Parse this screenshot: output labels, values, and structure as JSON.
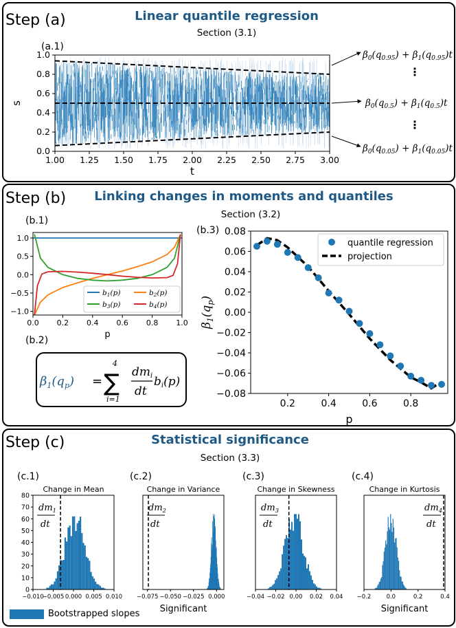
{
  "step_a": {
    "step_label": "Step (a)",
    "title": "Linear quantile regression",
    "section": "Section (3.1)",
    "panel_label": "(a.1)"
  },
  "step_b": {
    "step_label": "Step (b)",
    "title": "Linking changes in moments and quantiles",
    "section": "Section (3.2)",
    "panel_b1_label": "(b.1)",
    "panel_b2_label": "(b.2)",
    "panel_b3_label": "(b.3)",
    "equation": {
      "lhs": "β1(qp)",
      "sum_top": "4",
      "sum_bottom": "i=1",
      "numerator": "dmi",
      "denominator": "dt",
      "tail": "bi(p)"
    }
  },
  "step_c": {
    "step_label": "Step (c)",
    "title": "Statistical significance",
    "section": "Section (3.3)",
    "legend_label": "Bootstrapped slopes"
  },
  "colors": {
    "title_blue": "#1f5a87",
    "hist_blue": "#1f77b4",
    "b1": "#1f77b4",
    "b2": "#ff7f0e",
    "b3": "#2ca02c",
    "b4": "#d62728"
  },
  "chart_data": [
    {
      "id": "a1",
      "type": "line",
      "xlabel": "t",
      "ylabel": "s",
      "xlim": [
        1.0,
        3.0
      ],
      "ylim": [
        0.0,
        1.0
      ],
      "xticks": [
        "1.00",
        "1.25",
        "1.50",
        "1.75",
        "2.00",
        "2.25",
        "2.50",
        "2.75",
        "3.00"
      ],
      "yticks": [
        "0.0",
        "0.2",
        "0.4",
        "0.6",
        "0.8",
        "1.0"
      ],
      "series": [
        {
          "name": "",
          "x": [
            1.0,
            3.0
          ],
          "y": [
            0.94,
            0.8
          ],
          "style": "dashed"
        },
        {
          "name": "",
          "x": [
            1.0,
            3.0
          ],
          "y": [
            0.5,
            0.5
          ],
          "style": "dashed"
        },
        {
          "name": "",
          "x": [
            1.0,
            3.0
          ],
          "y": [
            0.06,
            0.2
          ],
          "style": "dashed"
        }
      ],
      "annotations": [
        "β0(q0.95) + β1(q0.95)t",
        "β0(q0.5) + β1(q0.5)t",
        "β0(q0.05) + β1(q0.05)t"
      ]
    },
    {
      "id": "b1",
      "type": "line",
      "xlabel": "p",
      "xlim": [
        0.0,
        1.0
      ],
      "ylim": [
        -1.1,
        1.15
      ],
      "xticks": [
        "0.0",
        "0.2",
        "0.4",
        "0.6",
        "0.8",
        "1.0"
      ],
      "yticks": [
        "-1.0",
        "-0.5",
        "0.0",
        "0.5",
        "1.0"
      ],
      "legend": [
        "b1(p)",
        "b2(p)",
        "b3(p)",
        "b4(p)"
      ],
      "series": [
        {
          "name": "b1(p)",
          "x": [
            0.0,
            1.0
          ],
          "y": [
            1.0,
            1.0
          ]
        },
        {
          "name": "b2(p)",
          "x": [
            0.01,
            0.05,
            0.1,
            0.2,
            0.3,
            0.4,
            0.5,
            0.6,
            0.7,
            0.8,
            0.9,
            0.95,
            0.99
          ],
          "y": [
            -1.1,
            -0.75,
            -0.55,
            -0.35,
            -0.22,
            -0.1,
            0.0,
            0.1,
            0.22,
            0.35,
            0.55,
            0.75,
            1.1
          ]
        },
        {
          "name": "b3(p)",
          "x": [
            0.01,
            0.05,
            0.1,
            0.2,
            0.3,
            0.4,
            0.5,
            0.6,
            0.7,
            0.8,
            0.9,
            0.95,
            0.99
          ],
          "y": [
            1.1,
            0.45,
            0.2,
            0.0,
            -0.1,
            -0.15,
            -0.17,
            -0.15,
            -0.1,
            0.0,
            0.2,
            0.45,
            1.1
          ]
        },
        {
          "name": "b4(p)",
          "x": [
            0.01,
            0.03,
            0.06,
            0.1,
            0.2,
            0.3,
            0.4,
            0.5,
            0.6,
            0.7,
            0.8,
            0.9,
            0.94,
            0.97,
            0.99
          ],
          "y": [
            -1.1,
            -0.3,
            0.02,
            0.08,
            0.09,
            0.07,
            0.04,
            0.0,
            -0.04,
            -0.07,
            -0.09,
            -0.08,
            -0.02,
            0.3,
            1.1
          ]
        }
      ]
    },
    {
      "id": "b3",
      "type": "scatter",
      "xlabel": "p",
      "ylabel": "β1(qp)",
      "xlim": [
        0.02,
        0.98
      ],
      "ylim": [
        -0.08,
        0.08
      ],
      "xticks": [
        "0.2",
        "0.4",
        "0.6",
        "0.8"
      ],
      "yticks": [
        "0.08",
        "0.06",
        "0.04",
        "0.02",
        "0.00",
        "−0.02",
        "−0.04",
        "−0.06",
        "−0.08"
      ],
      "legend": [
        "quantile regression",
        "projection"
      ],
      "series": [
        {
          "name": "quantile regression",
          "x": [
            0.05,
            0.1,
            0.15,
            0.2,
            0.25,
            0.3,
            0.35,
            0.4,
            0.45,
            0.5,
            0.55,
            0.6,
            0.65,
            0.7,
            0.75,
            0.8,
            0.85,
            0.9,
            0.95
          ],
          "y": [
            0.065,
            0.07,
            0.067,
            0.059,
            0.054,
            0.044,
            0.034,
            0.019,
            0.012,
            0.001,
            -0.011,
            -0.021,
            -0.032,
            -0.043,
            -0.053,
            -0.063,
            -0.067,
            -0.072,
            -0.071
          ]
        },
        {
          "name": "projection",
          "x": [
            0.05,
            0.1,
            0.15,
            0.2,
            0.3,
            0.4,
            0.5,
            0.6,
            0.7,
            0.8,
            0.85,
            0.9,
            0.93,
            0.95
          ],
          "y": [
            0.066,
            0.073,
            0.071,
            0.064,
            0.045,
            0.021,
            -0.002,
            -0.026,
            -0.047,
            -0.064,
            -0.069,
            -0.075,
            -0.071,
            -0.072
          ],
          "style": "dashed"
        }
      ]
    },
    {
      "id": "c1",
      "type": "bar",
      "title": "Change in Mean",
      "xlim": [
        -0.01,
        0.01
      ],
      "ylim": [
        0,
        80
      ],
      "xticks": [
        "−0.010",
        "−0.005",
        "0.000",
        "0.005",
        "0.010"
      ],
      "yticks": [
        "0",
        "10",
        "20",
        "30",
        "40",
        "50",
        "60",
        "70",
        "80"
      ],
      "hist": {
        "center": 0.0004,
        "sd": 0.0025,
        "peak": 60
      },
      "vline": -0.0032,
      "annotation": "dm1/dt",
      "xlabel": ""
    },
    {
      "id": "c2",
      "type": "bar",
      "title": "Change in Variance",
      "xlim": [
        -0.08,
        0.008
      ],
      "ylim": [
        0,
        80
      ],
      "xticks": [
        "−0.075",
        "−0.050",
        "−0.025",
        "0.000"
      ],
      "hist": {
        "center": -0.003,
        "sd": 0.0025,
        "peak": 62
      },
      "vline": -0.074,
      "annotation": "dm2/dt",
      "xlabel": "Significant"
    },
    {
      "id": "c3",
      "type": "bar",
      "title": "Change in Skewness",
      "xlim": [
        -0.04,
        0.04
      ],
      "ylim": [
        0,
        80
      ],
      "xticks": [
        "−0.04",
        "−0.02",
        "0.00",
        "0.02",
        "0.04"
      ],
      "hist": {
        "center": -0.002,
        "sd": 0.009,
        "peak": 62
      },
      "vline": -0.007,
      "annotation": "dm3/dt",
      "xlabel": ""
    },
    {
      "id": "c4",
      "type": "bar",
      "title": "Change in Kurtosis",
      "xlim": [
        -0.2,
        0.4
      ],
      "ylim": [
        0,
        80
      ],
      "xticks": [
        "−0.2",
        "0.0",
        "0.2",
        "0.4"
      ],
      "hist": {
        "center": 0.0,
        "sd": 0.04,
        "peak": 62
      },
      "vline": 0.39,
      "annotation": "dm4/dt",
      "xlabel": "Significant"
    }
  ]
}
